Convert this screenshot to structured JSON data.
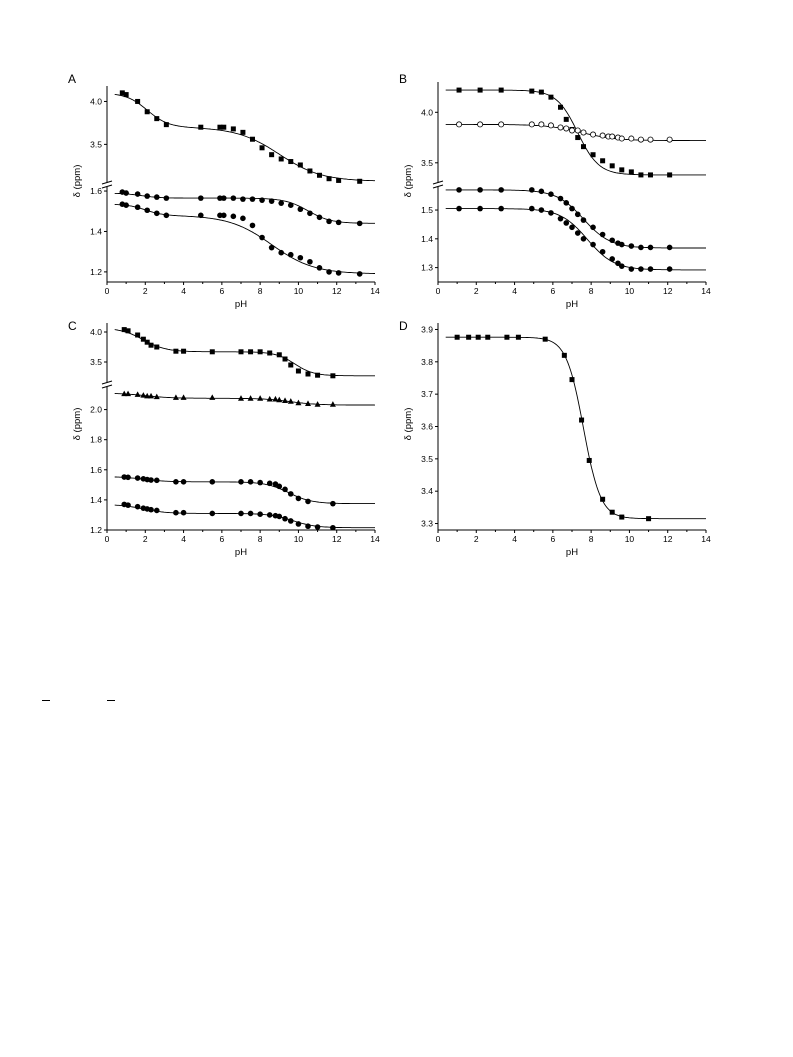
{
  "chart_data": [
    {
      "panel": "A",
      "type": "scatter",
      "xlabel": "pH",
      "ylabel": "δ (ppm)",
      "xlim": [
        0,
        14
      ],
      "xticks": [
        "0",
        "2",
        "4",
        "6",
        "8",
        "10",
        "12",
        "14"
      ],
      "broken_axis": true,
      "segments": [
        {
          "ylim": [
            3.05,
            4.18
          ],
          "yticks": [
            "3.5",
            "4.0"
          ]
        },
        {
          "ylim": [
            1.15,
            1.62
          ],
          "yticks": [
            "1.2",
            "1.4",
            "1.6"
          ]
        }
      ],
      "series": [
        {
          "marker": "square",
          "segment": 0,
          "x": [
            0.8,
            1.0,
            1.6,
            2.1,
            2.6,
            3.1,
            4.9,
            5.9,
            6.1,
            6.6,
            7.1,
            7.6,
            8.1,
            8.6,
            9.1,
            9.6,
            10.1,
            10.6,
            11.1,
            11.6,
            12.1,
            13.2
          ],
          "y": [
            4.1,
            4.08,
            4.0,
            3.88,
            3.8,
            3.73,
            3.7,
            3.7,
            3.7,
            3.68,
            3.64,
            3.56,
            3.46,
            3.38,
            3.33,
            3.3,
            3.26,
            3.19,
            3.14,
            3.1,
            3.08,
            3.07
          ],
          "fit": [
            4.1,
            3.7,
            3.07
          ],
          "fit_pk": [
            2.1,
            9.0
          ],
          "fit_w": [
            0.55,
            1.1
          ]
        },
        {
          "marker": "circle",
          "segment": 1,
          "x": [
            0.8,
            1.0,
            1.6,
            2.1,
            2.6,
            3.1,
            4.9,
            5.9,
            6.1,
            6.6,
            7.1,
            7.6,
            8.1,
            8.6,
            9.1,
            9.6,
            10.1,
            10.6,
            11.1,
            11.6,
            12.1,
            13.2
          ],
          "y": [
            1.595,
            1.59,
            1.585,
            1.575,
            1.57,
            1.565,
            1.565,
            1.565,
            1.565,
            1.565,
            1.56,
            1.56,
            1.555,
            1.55,
            1.54,
            1.53,
            1.51,
            1.49,
            1.47,
            1.45,
            1.445,
            1.44
          ],
          "fit": [
            1.59,
            1.565,
            1.44
          ],
          "fit_pk": [
            1.8,
            10.5
          ],
          "fit_w": [
            0.5,
            0.6
          ]
        },
        {
          "marker": "circle",
          "segment": 1,
          "x": [
            0.8,
            1.0,
            1.6,
            2.1,
            2.6,
            3.1,
            4.9,
            5.9,
            6.1,
            6.6,
            7.1,
            7.6,
            8.1,
            8.6,
            9.1,
            9.6,
            10.1,
            10.6,
            11.1,
            11.6,
            12.1,
            13.2
          ],
          "y": [
            1.535,
            1.53,
            1.52,
            1.505,
            1.49,
            1.48,
            1.48,
            1.48,
            1.48,
            1.475,
            1.465,
            1.43,
            1.37,
            1.32,
            1.295,
            1.285,
            1.27,
            1.25,
            1.22,
            1.2,
            1.195,
            1.19
          ],
          "fit": [
            1.535,
            1.48,
            1.19
          ],
          "fit_pk": [
            2.0,
            8.6
          ],
          "fit_w": [
            0.45,
            1.1
          ]
        }
      ]
    },
    {
      "panel": "B",
      "type": "scatter",
      "xlabel": "pH",
      "ylabel": "δ (ppm)",
      "xlim": [
        0,
        14
      ],
      "xticks": [
        "0",
        "2",
        "4",
        "6",
        "8",
        "10",
        "12",
        "14"
      ],
      "broken_axis": true,
      "segments": [
        {
          "ylim": [
            3.3,
            4.3
          ],
          "yticks": [
            "3.5",
            "4.0"
          ]
        },
        {
          "ylim": [
            1.25,
            1.58
          ],
          "yticks": [
            "1.3",
            "1.4",
            "1.5"
          ]
        }
      ],
      "series": [
        {
          "marker": "square",
          "segment": 0,
          "x": [
            1.1,
            2.2,
            3.3,
            4.9,
            5.4,
            5.9,
            6.4,
            6.7,
            7.0,
            7.3,
            7.6,
            8.1,
            8.6,
            9.1,
            9.6,
            10.1,
            10.6,
            11.1,
            12.1
          ],
          "y": [
            4.22,
            4.22,
            4.22,
            4.21,
            4.2,
            4.15,
            4.05,
            3.93,
            3.83,
            3.75,
            3.66,
            3.58,
            3.52,
            3.47,
            3.43,
            3.41,
            3.38,
            3.38,
            3.38
          ],
          "fit": [
            4.22,
            3.38
          ],
          "fit_pk": [
            7.3
          ],
          "fit_w": [
            0.55
          ]
        },
        {
          "marker": "open-circle",
          "segment": 0,
          "x": [
            1.1,
            2.2,
            3.3,
            4.9,
            5.4,
            5.9,
            6.4,
            6.7,
            7.0,
            7.3,
            7.6,
            8.1,
            8.6,
            8.9,
            9.1,
            9.4,
            9.6,
            10.1,
            10.6,
            11.1,
            12.1
          ],
          "y": [
            3.88,
            3.88,
            3.88,
            3.88,
            3.88,
            3.87,
            3.85,
            3.84,
            3.82,
            3.82,
            3.8,
            3.78,
            3.77,
            3.76,
            3.76,
            3.75,
            3.74,
            3.74,
            3.73,
            3.73,
            3.73
          ],
          "fit": [
            3.88,
            3.72
          ],
          "fit_pk": [
            7.5
          ],
          "fit_w": [
            0.9
          ]
        },
        {
          "marker": "circle",
          "segment": 1,
          "x": [
            1.1,
            2.2,
            3.3,
            4.9,
            5.4,
            5.9,
            6.4,
            6.7,
            7.0,
            7.3,
            7.6,
            8.1,
            8.6,
            9.1,
            9.4,
            9.6,
            10.1,
            10.6,
            11.1,
            12.1
          ],
          "y": [
            1.57,
            1.57,
            1.57,
            1.57,
            1.565,
            1.555,
            1.54,
            1.525,
            1.505,
            1.485,
            1.465,
            1.44,
            1.415,
            1.395,
            1.385,
            1.38,
            1.375,
            1.37,
            1.37,
            1.37
          ],
          "fit": [
            1.57,
            1.368
          ],
          "fit_pk": [
            7.6
          ],
          "fit_w": [
            0.7
          ]
        },
        {
          "marker": "circle",
          "segment": 1,
          "x": [
            1.1,
            2.2,
            3.3,
            4.9,
            5.4,
            5.9,
            6.4,
            6.7,
            7.0,
            7.3,
            7.6,
            8.1,
            8.6,
            9.1,
            9.4,
            9.6,
            10.1,
            10.6,
            11.1,
            12.1
          ],
          "y": [
            1.505,
            1.505,
            1.505,
            1.505,
            1.5,
            1.49,
            1.47,
            1.455,
            1.44,
            1.42,
            1.4,
            1.38,
            1.355,
            1.33,
            1.315,
            1.305,
            1.295,
            1.295,
            1.295,
            1.295
          ],
          "fit": [
            1.505,
            1.292
          ],
          "fit_pk": [
            7.8
          ],
          "fit_w": [
            0.7
          ]
        }
      ]
    },
    {
      "panel": "C",
      "type": "scatter",
      "xlabel": "pH",
      "ylabel": "δ (ppm)",
      "xlim": [
        0,
        14
      ],
      "xticks": [
        "0",
        "2",
        "4",
        "6",
        "8",
        "10",
        "12",
        "14"
      ],
      "broken_axis": true,
      "segments": [
        {
          "ylim": [
            3.15,
            4.15
          ],
          "yticks": [
            "3.5",
            "4.0"
          ]
        },
        {
          "ylim": [
            1.2,
            2.15
          ],
          "yticks": [
            "1.2",
            "1.4",
            "1.6",
            "1.8",
            "2.0"
          ]
        }
      ],
      "series": [
        {
          "marker": "square",
          "segment": 0,
          "x": [
            0.9,
            1.1,
            1.6,
            1.9,
            2.1,
            2.3,
            2.6,
            3.6,
            4.0,
            5.5,
            7.0,
            7.5,
            8.0,
            8.5,
            9.0,
            9.3,
            9.6,
            10.0,
            10.5,
            11.0,
            11.8
          ],
          "y": [
            4.04,
            4.02,
            3.95,
            3.88,
            3.83,
            3.78,
            3.75,
            3.68,
            3.68,
            3.67,
            3.67,
            3.67,
            3.67,
            3.65,
            3.62,
            3.55,
            3.45,
            3.35,
            3.3,
            3.28,
            3.27
          ],
          "fit": [
            4.07,
            3.67,
            3.27
          ],
          "fit_pk": [
            1.9,
            9.8
          ],
          "fit_w": [
            0.6,
            0.5
          ]
        },
        {
          "marker": "triangle",
          "segment": 1,
          "x": [
            0.9,
            1.1,
            1.6,
            1.9,
            2.1,
            2.3,
            2.6,
            3.6,
            4.0,
            5.5,
            7.0,
            7.5,
            8.0,
            8.5,
            8.8,
            9.0,
            9.3,
            9.6,
            10.0,
            10.5,
            11.0,
            11.8
          ],
          "y": [
            2.105,
            2.105,
            2.1,
            2.095,
            2.09,
            2.09,
            2.085,
            2.08,
            2.08,
            2.08,
            2.075,
            2.075,
            2.075,
            2.07,
            2.07,
            2.065,
            2.06,
            2.055,
            2.045,
            2.04,
            2.035,
            2.035
          ],
          "fit": [
            2.11,
            2.075,
            2.03
          ],
          "fit_pk": [
            2.0,
            9.6
          ],
          "fit_w": [
            0.7,
            0.7
          ]
        },
        {
          "marker": "circle",
          "segment": 1,
          "x": [
            0.9,
            1.1,
            1.6,
            1.9,
            2.1,
            2.3,
            2.6,
            3.6,
            4.0,
            5.5,
            7.0,
            7.5,
            8.0,
            8.5,
            8.8,
            9.0,
            9.3,
            9.6,
            10.0,
            10.5,
            11.8
          ],
          "y": [
            1.552,
            1.55,
            1.545,
            1.54,
            1.535,
            1.532,
            1.53,
            1.52,
            1.52,
            1.52,
            1.52,
            1.52,
            1.515,
            1.51,
            1.505,
            1.49,
            1.47,
            1.44,
            1.41,
            1.39,
            1.375
          ],
          "fit": [
            1.555,
            1.52,
            1.375
          ],
          "fit_pk": [
            1.9,
            9.5
          ],
          "fit_w": [
            0.6,
            0.6
          ]
        },
        {
          "marker": "circle",
          "segment": 1,
          "x": [
            0.9,
            1.1,
            1.6,
            1.9,
            2.1,
            2.3,
            2.6,
            3.6,
            4.0,
            5.5,
            7.0,
            7.5,
            8.0,
            8.5,
            8.8,
            9.0,
            9.3,
            9.6,
            10.0,
            10.5,
            11.0,
            11.8
          ],
          "y": [
            1.37,
            1.365,
            1.355,
            1.345,
            1.34,
            1.335,
            1.33,
            1.315,
            1.315,
            1.31,
            1.31,
            1.31,
            1.305,
            1.3,
            1.295,
            1.29,
            1.275,
            1.26,
            1.24,
            1.225,
            1.22,
            1.215
          ],
          "fit": [
            1.37,
            1.31,
            1.215
          ],
          "fit_pk": [
            1.9,
            9.7
          ],
          "fit_w": [
            0.6,
            0.6
          ]
        }
      ]
    },
    {
      "panel": "D",
      "type": "scatter",
      "xlabel": "pH",
      "ylabel": "δ (ppm)",
      "xlim": [
        0,
        14
      ],
      "ylim": [
        3.28,
        3.92
      ],
      "xticks": [
        "0",
        "2",
        "4",
        "6",
        "8",
        "10",
        "12",
        "14"
      ],
      "yticks": [
        "3.3",
        "3.4",
        "3.5",
        "3.6",
        "3.7",
        "3.8",
        "3.9"
      ],
      "broken_axis": false,
      "series": [
        {
          "marker": "square",
          "x": [
            1.0,
            1.6,
            2.1,
            2.6,
            3.6,
            4.2,
            5.6,
            6.6,
            7.0,
            7.5,
            7.9,
            8.6,
            9.1,
            9.6,
            11.0
          ],
          "y": [
            3.876,
            3.876,
            3.876,
            3.876,
            3.876,
            3.876,
            3.87,
            3.82,
            3.745,
            3.62,
            3.495,
            3.375,
            3.335,
            3.32,
            3.315
          ],
          "fit": [
            3.876,
            3.315
          ],
          "fit_pk": [
            7.6
          ],
          "fit_w": [
            0.45
          ]
        }
      ]
    }
  ]
}
